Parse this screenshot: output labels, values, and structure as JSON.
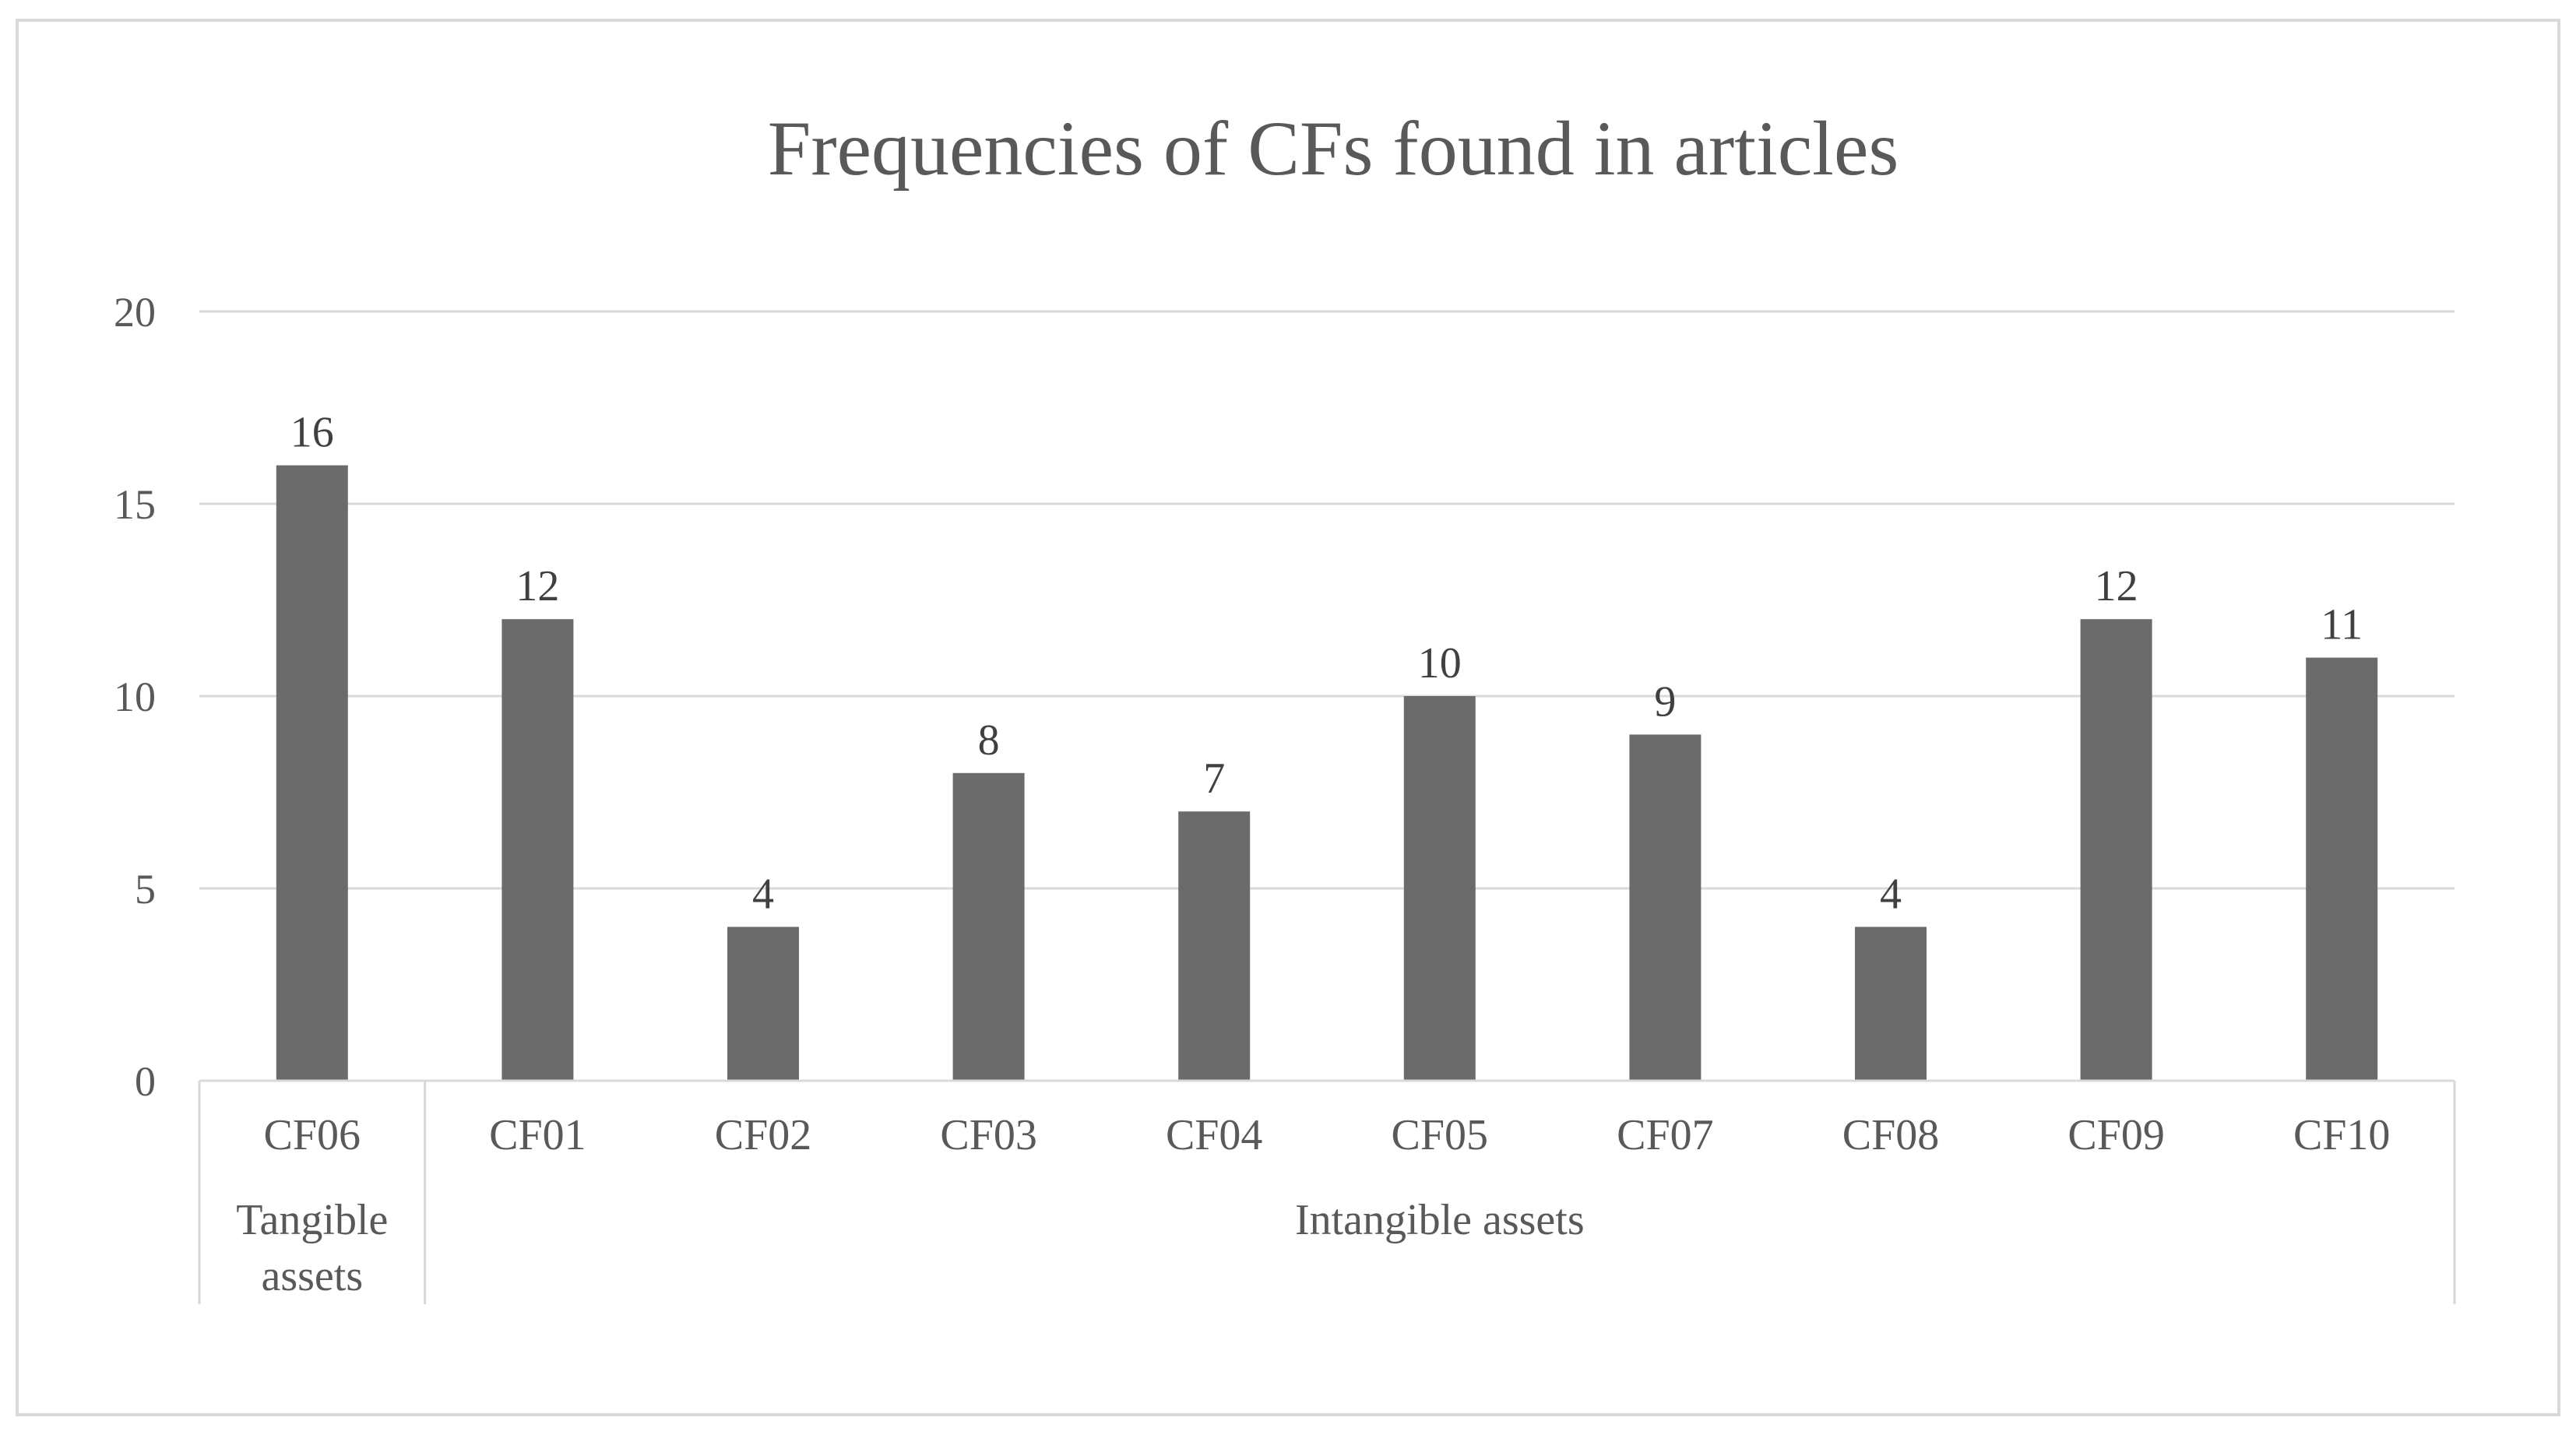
{
  "chart_data": {
    "type": "bar",
    "title": "Frequencies of CFs found in articles",
    "xlabel": "",
    "ylabel": "",
    "ylim": [
      0,
      20
    ],
    "yticks": [
      "0",
      "5",
      "10",
      "15",
      "20"
    ],
    "grid": true,
    "legend": "none",
    "bar_color": "#6b6b6b",
    "categories": [
      "CF06",
      "CF01",
      "CF02",
      "CF03",
      "CF04",
      "CF05",
      "CF07",
      "CF08",
      "CF09",
      "CF10"
    ],
    "values": [
      16,
      12,
      4,
      8,
      7,
      10,
      9,
      4,
      12,
      11
    ],
    "data_labels": [
      "16",
      "12",
      "4",
      "8",
      "7",
      "10",
      "9",
      "4",
      "12",
      "11"
    ],
    "groups": [
      {
        "label_lines": [
          "Tangible",
          "assets"
        ],
        "categories": [
          "CF06"
        ]
      },
      {
        "label_lines": [
          "Intangible assets"
        ],
        "categories": [
          "CF01",
          "CF02",
          "CF03",
          "CF04",
          "CF05",
          "CF07",
          "CF08",
          "CF09",
          "CF10"
        ]
      }
    ]
  }
}
